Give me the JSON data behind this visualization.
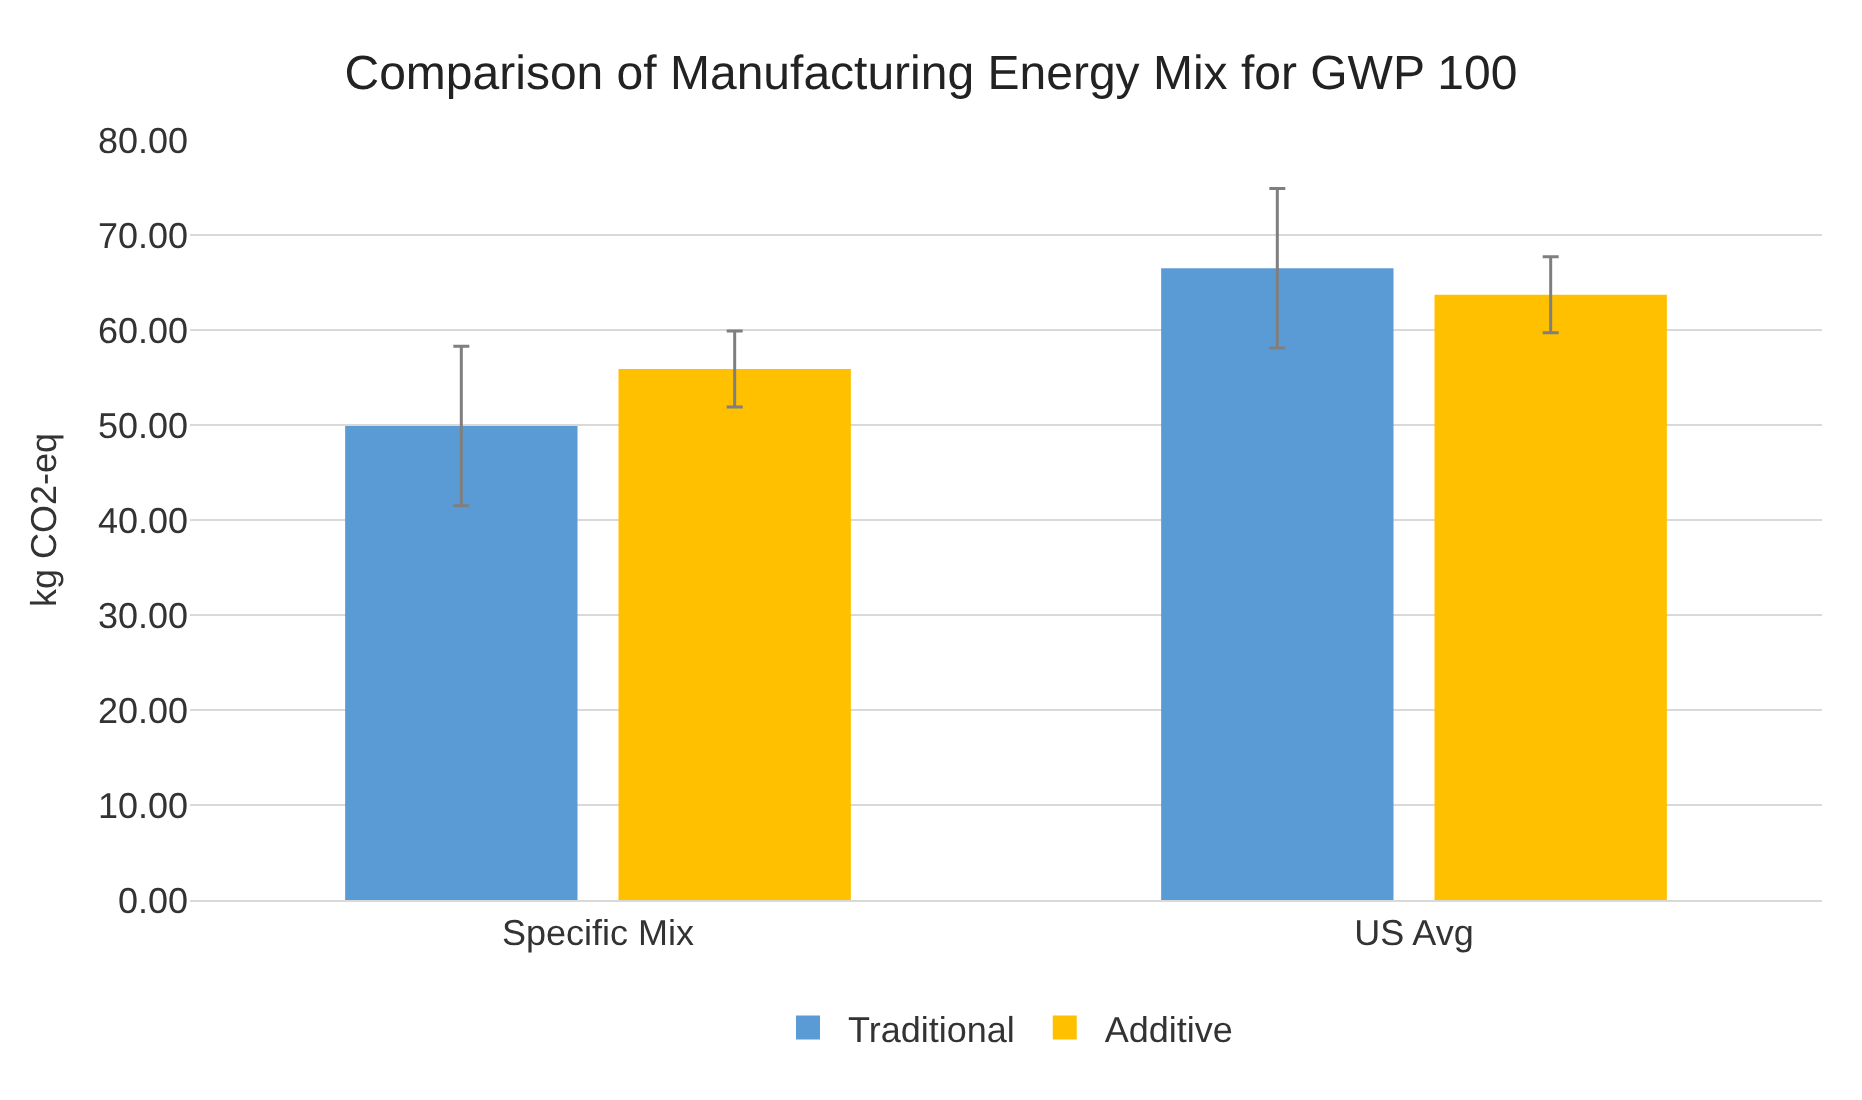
{
  "chart_data": {
    "type": "bar",
    "title": "Comparison of Manufacturing Energy Mix for GWP 100",
    "ylabel": "kg CO2-eq",
    "categories": [
      "Specific Mix",
      "US Avg"
    ],
    "series": [
      {
        "name": "Traditional",
        "color": "#5b9bd5",
        "values": [
          49.9,
          66.5
        ],
        "errors": [
          8.4,
          8.4
        ]
      },
      {
        "name": "Additive",
        "color": "#ffc000",
        "values": [
          55.9,
          63.7
        ],
        "errors": [
          4.0,
          4.0
        ]
      }
    ],
    "ylim": [
      0,
      80
    ],
    "yticks": [
      {
        "value": 0,
        "label": "0.00"
      },
      {
        "value": 10,
        "label": "10.00"
      },
      {
        "value": 20,
        "label": "20.00"
      },
      {
        "value": 30,
        "label": "30.00"
      },
      {
        "value": 40,
        "label": "40.00"
      },
      {
        "value": 50,
        "label": "50.00"
      },
      {
        "value": 60,
        "label": "60.00"
      },
      {
        "value": 70,
        "label": "70.00"
      },
      {
        "value": 80,
        "label": "80.00"
      }
    ],
    "grid": "y",
    "legend": "bottom"
  }
}
